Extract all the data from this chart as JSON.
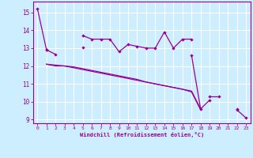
{
  "title": "",
  "xlabel": "Windchill (Refroidissement éolien,°C)",
  "x": [
    0,
    1,
    2,
    3,
    4,
    5,
    6,
    7,
    8,
    9,
    10,
    11,
    12,
    13,
    14,
    15,
    16,
    17,
    18,
    19,
    20,
    21,
    22,
    23
  ],
  "line1": [
    15.2,
    12.9,
    null,
    null,
    null,
    13.7,
    13.5,
    13.5,
    13.5,
    12.8,
    13.2,
    13.1,
    13.0,
    13.0,
    13.9,
    13.0,
    13.5,
    13.5,
    null,
    10.3,
    10.3,
    null,
    9.6,
    null
  ],
  "line2": [
    null,
    12.9,
    12.65,
    null,
    null,
    13.05,
    null,
    null,
    null,
    null,
    null,
    null,
    null,
    null,
    null,
    null,
    null,
    12.6,
    9.6,
    10.1,
    null,
    null,
    9.55,
    9.1
  ],
  "line3": [
    null,
    12.1,
    12.0,
    12.0,
    11.9,
    11.8,
    11.7,
    11.6,
    11.5,
    11.4,
    11.3,
    11.2,
    11.1,
    11.0,
    10.9,
    10.8,
    10.7,
    10.6,
    9.6,
    null,
    null,
    null,
    null,
    null
  ],
  "line4": [
    null,
    12.1,
    12.05,
    12.0,
    11.95,
    11.85,
    11.75,
    11.65,
    11.55,
    11.45,
    11.35,
    11.25,
    11.1,
    11.0,
    10.9,
    10.8,
    10.7,
    10.55,
    9.55,
    null,
    null,
    null,
    null,
    null
  ],
  "line_color": "#990099",
  "bg_color": "#cceeff",
  "grid_color": "#ffffff",
  "ylim": [
    8.8,
    15.6
  ],
  "xlim": [
    -0.5,
    23.5
  ],
  "yticks": [
    9,
    10,
    11,
    12,
    13,
    14,
    15
  ],
  "xticks": [
    0,
    1,
    2,
    3,
    4,
    5,
    6,
    7,
    8,
    9,
    10,
    11,
    12,
    13,
    14,
    15,
    16,
    17,
    18,
    19,
    20,
    21,
    22,
    23
  ]
}
